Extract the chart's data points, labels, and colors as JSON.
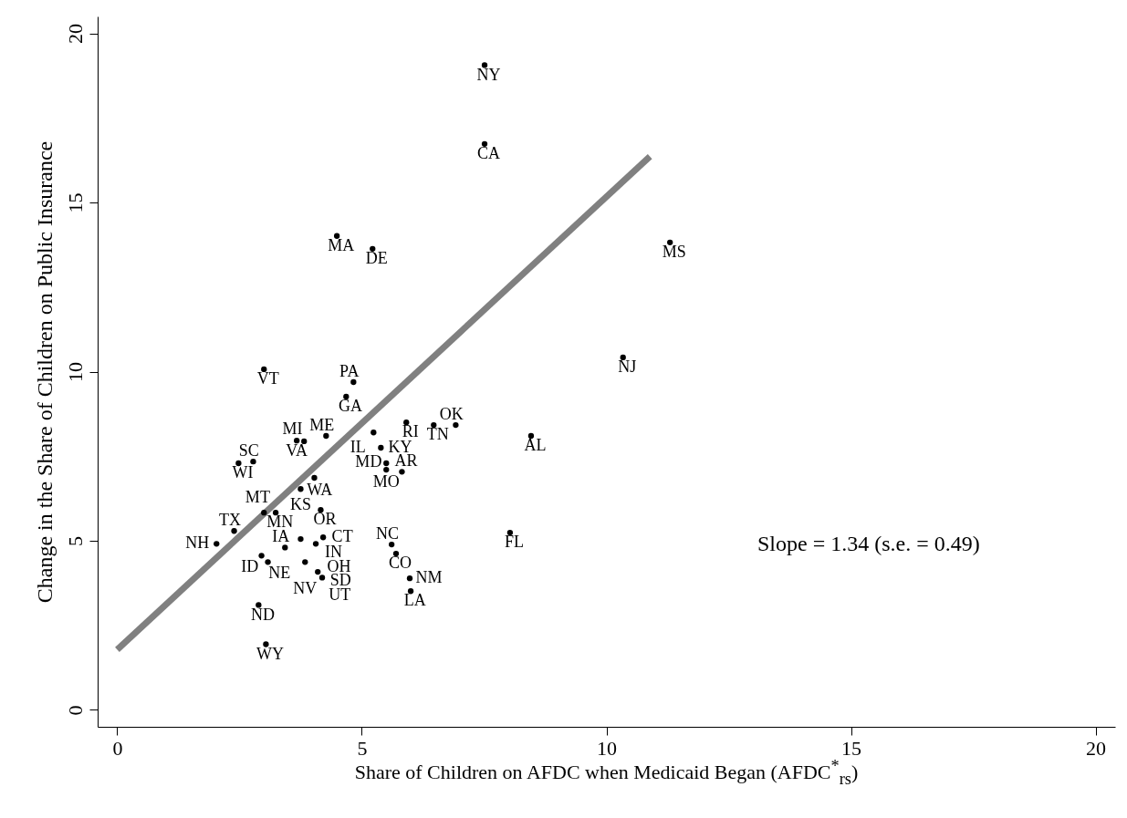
{
  "chart_data": {
    "type": "scatter",
    "xlabel": "Share of Children on AFDC when Medicaid Began (AFDC$^{*}$$_{rs}$)",
    "ylabel": "Change in the Share of Children on Public Insurance",
    "xlim": [
      -0.4,
      20.4
    ],
    "ylim": [
      -0.5,
      20.5
    ],
    "xticks": [
      0,
      5,
      10,
      15,
      20
    ],
    "yticks": [
      0,
      5,
      10,
      15,
      20
    ],
    "grid": false,
    "annotations": [
      "Slope = 1.34 (s.e. = 0.49)"
    ],
    "series": [
      {
        "color": "#000000",
        "marker": "circle",
        "x": [
          7.51,
          7.51,
          4.49,
          5.22,
          11.3,
          10.34,
          3.0,
          4.83,
          4.68,
          5.91,
          6.47,
          6.92,
          8.46,
          5.24,
          4.27,
          3.67,
          3.82,
          5.39,
          2.48,
          2.78,
          5.5,
          5.5,
          5.82,
          4.03,
          3.75,
          4.16,
          3.0,
          3.24,
          2.39,
          2.03,
          3.75,
          4.21,
          4.06,
          3.43,
          2.95,
          3.08,
          3.84,
          4.1,
          4.19,
          5.61,
          5.7,
          8.03,
          5.98,
          6.0,
          2.89,
          3.04
        ],
        "values": [
          19.06,
          16.73,
          14.01,
          13.63,
          13.82,
          10.42,
          10.07,
          9.69,
          9.26,
          8.5,
          8.42,
          8.42,
          8.1,
          8.2,
          8.1,
          7.96,
          7.94,
          7.75,
          7.29,
          7.34,
          7.29,
          7.1,
          7.04,
          6.86,
          6.53,
          5.91,
          5.83,
          5.83,
          5.29,
          4.91,
          5.05,
          5.1,
          4.91,
          4.8,
          4.56,
          4.37,
          4.37,
          4.08,
          3.91,
          4.89,
          4.62,
          5.24,
          3.89,
          3.51,
          3.1,
          1.94
        ],
        "value_labels": [
          "NY",
          "CA",
          "MA",
          "DE",
          "MS",
          "NJ",
          "VT",
          "PA",
          "GA",
          "RI",
          "TN",
          "OK",
          "AL",
          "IL",
          "ME",
          "VA",
          "MI",
          "KY",
          "WI",
          "SC",
          "MO",
          "MD",
          "AR",
          "WA",
          "KS",
          "OR",
          "MT",
          "MN",
          "TX",
          "NH",
          "IN",
          "CT",
          "OH",
          "IA",
          "ID",
          "NE",
          "NV",
          "SD",
          "UT",
          "NC",
          "CO",
          "FL",
          "NM",
          "LA",
          "ND",
          "WY"
        ]
      },
      {
        "type": "line",
        "color": "#808080",
        "x": [
          0,
          10.89
        ],
        "values": [
          1.78,
          16.36
        ]
      }
    ]
  }
}
